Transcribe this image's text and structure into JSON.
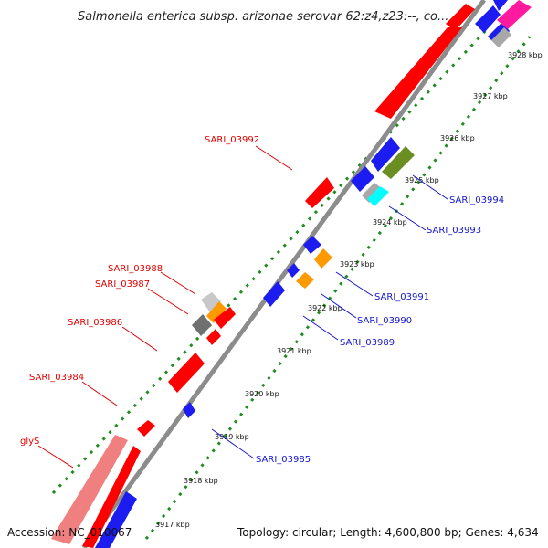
{
  "title": "Salmonella enterica subsp. arizonae serovar 62:z4,z23:--, co...",
  "footer": {
    "accession": "Accession: NC_010067",
    "topology": "Topology: circular; Length: 4,600,800 bp; Genes: 4,634"
  },
  "colors": {
    "backbone": "#8c8c8c",
    "tick_dots": "#1e8c1e",
    "red_label": "#e00000",
    "blue_label": "#1414d2",
    "forward_gene": "#ff0000",
    "reverse_gene": "#1c1cf0"
  },
  "ticks": [
    "3917 kbp",
    "3918 kbp",
    "3919 kbp",
    "3920 kbp",
    "3921 kbp",
    "3922 kbp",
    "3923 kbp",
    "3924 kbp",
    "3925 kbp",
    "3926 kbp",
    "3927 kbp",
    "3928 kbp"
  ],
  "gene_labels_forward": [
    "SARI_03992",
    "SARI_03988",
    "SARI_03987",
    "SARI_03986",
    "SARI_03984",
    "glyS"
  ],
  "gene_labels_reverse": [
    "SARI_03994",
    "SARI_03993",
    "SARI_03991",
    "SARI_03990",
    "SARI_03989",
    "SARI_03985"
  ]
}
